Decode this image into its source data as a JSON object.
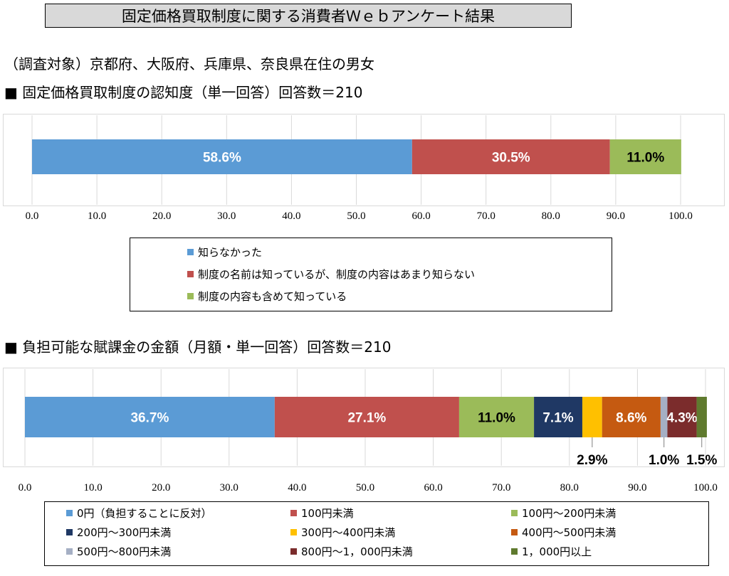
{
  "page_title": "固定価格買取制度に関する消費者Ｗｅｂアンケート結果",
  "subject": "（調査対象）京都府、大阪府、兵庫県、奈良県在住の男女",
  "sections": [
    {
      "heading": "■ 固定価格買取制度の認知度（単一回答）回答数＝210"
    },
    {
      "heading": "■ 負担可能な賦課金の金額（月額・単一回答）回答数＝210"
    }
  ],
  "chart_data": [
    {
      "type": "bar",
      "orientation": "horizontal-stacked",
      "title": "固定価格買取制度の認知度（単一回答）回答数＝210",
      "xlim": [
        0,
        100
      ],
      "xticks": [
        "0.0",
        "10.0",
        "20.0",
        "30.0",
        "40.0",
        "50.0",
        "60.0",
        "70.0",
        "80.0",
        "90.0",
        "100.0"
      ],
      "grid": true,
      "series": [
        {
          "name": "知らなかった",
          "value": 58.6,
          "label": "58.6%",
          "color": "#5b9bd5",
          "label_color": "#ffffff",
          "label_pos": "inside"
        },
        {
          "name": "制度の名前は知っているが、制度の内容はあまり知らない",
          "value": 30.5,
          "label": "30.5%",
          "color": "#c0504d",
          "label_color": "#ffffff",
          "label_pos": "inside"
        },
        {
          "name": "制度の内容も含めて知っている",
          "value": 11.0,
          "label": "11.0%",
          "color": "#9bbb59",
          "label_color": "#000000",
          "label_pos": "inside"
        }
      ]
    },
    {
      "type": "bar",
      "orientation": "horizontal-stacked",
      "title": "負担可能な賦課金の金額（月額・単一回答）回答数＝210",
      "xlim": [
        0,
        100
      ],
      "xticks": [
        "0.0",
        "10.0",
        "20.0",
        "30.0",
        "40.0",
        "50.0",
        "60.0",
        "70.0",
        "80.0",
        "90.0",
        "100.0"
      ],
      "grid": true,
      "series": [
        {
          "name": "0円（負担することに反対）",
          "value": 36.7,
          "label": "36.7%",
          "color": "#5b9bd5",
          "label_color": "#ffffff",
          "label_pos": "inside"
        },
        {
          "name": "100円未満",
          "value": 27.1,
          "label": "27.1%",
          "color": "#c0504d",
          "label_color": "#ffffff",
          "label_pos": "inside"
        },
        {
          "name": "100円～200円未満",
          "value": 11.0,
          "label": "11.0%",
          "color": "#9bbb59",
          "label_color": "#000000",
          "label_pos": "inside"
        },
        {
          "name": "200円～300円未満",
          "value": 7.1,
          "label": "7.1%",
          "color": "#1f3864",
          "label_color": "#ffffff",
          "label_pos": "inside"
        },
        {
          "name": "300円～400円未満",
          "value": 2.9,
          "label": "2.9%",
          "color": "#ffc000",
          "label_color": "#000000",
          "label_pos": "below"
        },
        {
          "name": "400円～500円未満",
          "value": 8.6,
          "label": "8.6%",
          "color": "#c55a11",
          "label_color": "#ffffff",
          "label_pos": "inside"
        },
        {
          "name": "500円～800円未満",
          "value": 1.0,
          "label": "1.0%",
          "color": "#a5afc4",
          "label_color": "#000000",
          "label_pos": "below"
        },
        {
          "name": "800円～1，000円未満",
          "value": 4.3,
          "label": "4.3%",
          "color": "#7b2c2c",
          "label_color": "#ffffff",
          "label_pos": "inside"
        },
        {
          "name": "1，000円以上",
          "value": 1.5,
          "label": "1.5%",
          "color": "#5f7a2e",
          "label_color": "#000000",
          "label_pos": "below"
        }
      ]
    }
  ]
}
